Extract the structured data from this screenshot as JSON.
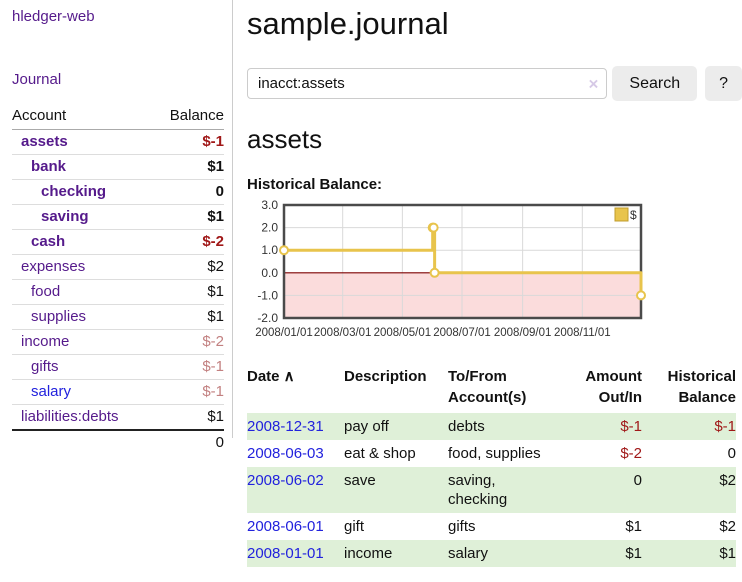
{
  "app": {
    "brand": "hledger-web",
    "nav_journal": "Journal"
  },
  "sidebar": {
    "header": {
      "account": "Account",
      "balance": "Balance"
    },
    "accounts": [
      {
        "name": "assets",
        "balance": "$-1",
        "indent": 1,
        "bold": true,
        "balance_style": "neg-strong"
      },
      {
        "name": "bank",
        "balance": "$1",
        "indent": 2,
        "bold": true,
        "balance_style": "pos"
      },
      {
        "name": "checking",
        "balance": "0",
        "indent": 3,
        "bold": true,
        "balance_style": "pos"
      },
      {
        "name": "saving",
        "balance": "$1",
        "indent": 3,
        "bold": true,
        "balance_style": "pos"
      },
      {
        "name": "cash",
        "balance": "$-2",
        "indent": 2,
        "bold": true,
        "balance_style": "neg-strong"
      },
      {
        "name": "expenses",
        "balance": "$2",
        "indent": 1,
        "bold": false,
        "balance_style": "pos"
      },
      {
        "name": "food",
        "balance": "$1",
        "indent": 2,
        "bold": false,
        "balance_style": "pos"
      },
      {
        "name": "supplies",
        "balance": "$1",
        "indent": 2,
        "bold": false,
        "balance_style": "pos"
      },
      {
        "name": "income",
        "balance": "$-2",
        "indent": 1,
        "bold": false,
        "balance_style": "neg-muted"
      },
      {
        "name": "gifts",
        "balance": "$-1",
        "indent": 2,
        "bold": false,
        "balance_style": "neg-muted"
      },
      {
        "name": "salary",
        "balance": "$-1",
        "indent": 2,
        "bold": false,
        "balance_style": "neg-muted",
        "link_color": "blue"
      },
      {
        "name": "liabilities:debts",
        "balance": "$1",
        "indent": 1,
        "bold": false,
        "balance_style": "pos"
      }
    ],
    "total": "0"
  },
  "main": {
    "title": "sample.journal",
    "search": {
      "value": "inacct:assets",
      "clear_icon": "×",
      "button": "Search",
      "help_button": "?"
    },
    "heading": "assets",
    "chart_title": "Historical Balance:"
  },
  "chart_data": {
    "type": "line",
    "step": true,
    "title": "Historical Balance:",
    "series": [
      {
        "name": "$",
        "color": "#e8c44c",
        "points": [
          [
            "2008-01-01",
            1
          ],
          [
            "2008-06-01",
            2
          ],
          [
            "2008-06-02",
            2
          ],
          [
            "2008-06-03",
            0
          ],
          [
            "2008-12-31",
            -1
          ]
        ]
      }
    ],
    "ylim": [
      -2,
      3
    ],
    "yticks": [
      3.0,
      2.0,
      1.0,
      0.0,
      -1.0,
      -2.0
    ],
    "ytick_labels": [
      "3.0",
      "2.0",
      "1.0",
      "0.0",
      "-1.0",
      "-2.0"
    ],
    "xticks": [
      "2008-01-01",
      "2008-03-01",
      "2008-05-01",
      "2008-07-01",
      "2008-09-01",
      "2008-11-01"
    ],
    "xtick_labels": [
      "2008/01/01",
      "2008/03/01",
      "2008/05/01",
      "2008/07/01",
      "2008/09/01",
      "2008/11/01"
    ],
    "xdomain": [
      "2008-01-01",
      "2008-12-31"
    ],
    "grid": true,
    "legend": "$",
    "legend_position": "top-right",
    "colors": {
      "line": "#e8c44c",
      "marker_fill": "#ffffff",
      "negative_fill": "#fbdcdc",
      "zero_line": "#7d0000",
      "grid": "#d9d9d9",
      "border": "#4a4a4a",
      "tick_text": "#333333"
    }
  },
  "table": {
    "headers": [
      {
        "key": "date",
        "lines": [
          "Date"
        ],
        "align": "left",
        "sortable": true,
        "sort_indicator": "∧"
      },
      {
        "key": "description",
        "lines": [
          "Description"
        ],
        "align": "left"
      },
      {
        "key": "accounts",
        "lines": [
          "To/From",
          "Account(s)"
        ],
        "align": "left"
      },
      {
        "key": "amount",
        "lines": [
          "Amount",
          "Out/In"
        ],
        "align": "right"
      },
      {
        "key": "balance",
        "lines": [
          "Historical",
          "Balance"
        ],
        "align": "right"
      }
    ],
    "rows": [
      {
        "date": "2008-12-31",
        "description": "pay off",
        "accounts": "debts",
        "amount": "$-1",
        "amount_neg": true,
        "balance": "$-1",
        "balance_neg": true,
        "shade": true
      },
      {
        "date": "2008-06-03",
        "description": "eat & shop",
        "accounts": "food, supplies",
        "amount": "$-2",
        "amount_neg": true,
        "balance": "0",
        "balance_neg": false,
        "shade": false
      },
      {
        "date": "2008-06-02",
        "description": "save",
        "accounts": "saving, checking",
        "amount": "0",
        "amount_neg": false,
        "balance": "$2",
        "balance_neg": false,
        "shade": true
      },
      {
        "date": "2008-06-01",
        "description": "gift",
        "accounts": "gifts",
        "amount": "$1",
        "amount_neg": false,
        "balance": "$2",
        "balance_neg": false,
        "shade": false
      },
      {
        "date": "2008-01-01",
        "description": "income",
        "accounts": "salary",
        "amount": "$1",
        "amount_neg": false,
        "balance": "$1",
        "balance_neg": false,
        "shade": true
      }
    ]
  }
}
